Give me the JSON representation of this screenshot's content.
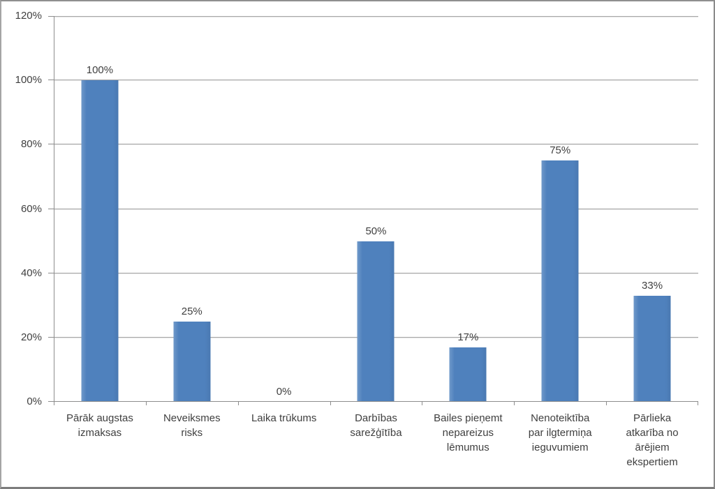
{
  "chart_data": {
    "type": "bar",
    "title": "",
    "xlabel": "",
    "ylabel": "",
    "categories": [
      "Pārāk augstas izmaksas",
      "Neveiksmes risks",
      "Laika trūkums",
      "Darbības sarežģītība",
      "Bailes pieņemt nepareizus lēmumus",
      "Nenoteiktība par ilgtermiņa ieguvumiem",
      "Pārlieka atkarība no ārējiem ekspertiem"
    ],
    "values": [
      100,
      25,
      0,
      50,
      17,
      75,
      33
    ],
    "data_labels": [
      "100%",
      "25%",
      "0%",
      "50%",
      "17%",
      "75%",
      "33%"
    ],
    "y_axis": {
      "min": 0,
      "max": 120,
      "ticks": [
        0,
        20,
        40,
        60,
        80,
        100,
        120
      ],
      "tick_labels": [
        "0%",
        "20%",
        "40%",
        "60%",
        "80%",
        "100%",
        "120%"
      ]
    },
    "grid": true,
    "legend": false,
    "colors": {
      "bar": "#4F81BD",
      "gridline": "#A8A8A8",
      "axis": "#8C8C8C",
      "text": "#3F3F3F",
      "border": "#8F8F8F",
      "background": "#FFFFFF"
    }
  }
}
